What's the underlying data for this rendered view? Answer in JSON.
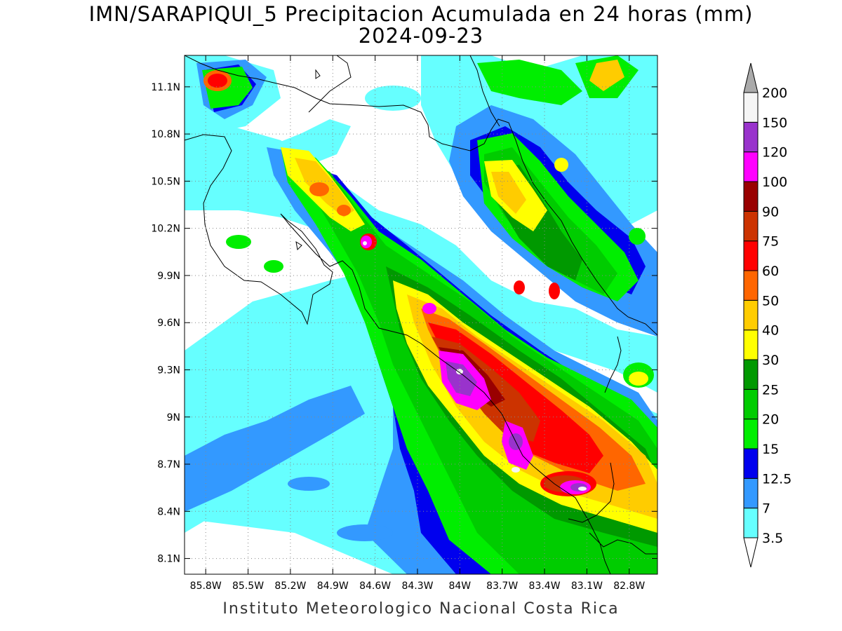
{
  "title": {
    "line1": "IMN/SARAPIQUI_5 Precipitacion Acumulada en 24 horas (mm)",
    "line2": "2024-09-23"
  },
  "footer": "Instituto Meteorologico Nacional Costa Rica",
  "axes": {
    "lat_labels": [
      "11.1N",
      "10.8N",
      "10.5N",
      "10.2N",
      "9.9N",
      "9.6N",
      "9.3N",
      "9N",
      "8.7N",
      "8.4N",
      "8.1N"
    ],
    "lat_values": [
      11.1,
      10.8,
      10.5,
      10.2,
      9.9,
      9.6,
      9.3,
      9.0,
      8.7,
      8.4,
      8.1
    ],
    "lon_labels": [
      "85.8W",
      "85.5W",
      "85.2W",
      "84.9W",
      "84.6W",
      "84.3W",
      "84W",
      "83.7W",
      "83.4W",
      "83.1W",
      "82.8W"
    ],
    "lon_values": [
      -85.8,
      -85.5,
      -85.2,
      -84.9,
      -84.6,
      -84.3,
      -84.0,
      -83.7,
      -83.4,
      -83.1,
      -82.8
    ],
    "lon_range": [
      -85.95,
      -82.6
    ],
    "lat_range": [
      8.0,
      11.3
    ],
    "grid": true
  },
  "colorbar": {
    "labels": [
      "3.5",
      "7",
      "12.5",
      "15",
      "20",
      "25",
      "30",
      "40",
      "50",
      "60",
      "75",
      "90",
      "100",
      "120",
      "150",
      "200"
    ],
    "colors": [
      "#66ffff",
      "#3399ff",
      "#0000ee",
      "#00ee00",
      "#00cc00",
      "#009900",
      "#ffff00",
      "#ffcc00",
      "#ff6600",
      "#ff0000",
      "#cc3300",
      "#990000",
      "#ff00ff",
      "#9933cc",
      "#f5f5f5"
    ],
    "below_color": "#ffffff",
    "above_color": "#aaaaaa"
  }
}
